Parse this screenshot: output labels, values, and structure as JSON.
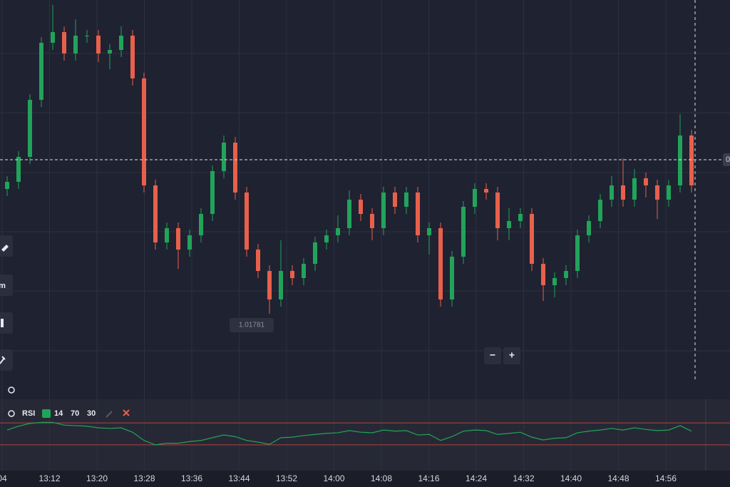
{
  "chart_data": {
    "type": "candlestick",
    "ylim": [
      1.01677,
      1.02237
    ],
    "up_color": "#22a35a",
    "down_color": "#e8604c",
    "price_marker": {
      "label": "1.01781",
      "value": 1.01781
    },
    "current_price": {
      "value": 1.02013,
      "label": "0"
    },
    "time_labels": [
      "04",
      "13:12",
      "13:20",
      "13:28",
      "13:36",
      "13:44",
      "13:52",
      "14:00",
      "14:08",
      "14:16",
      "14:24",
      "14:32",
      "14:40",
      "14:48",
      "14:56"
    ],
    "open": [
      1.01972,
      1.01982,
      1.02017,
      1.02097,
      1.02177,
      1.02192,
      1.02162,
      1.02187,
      1.02187,
      1.02162,
      1.02167,
      1.02187,
      1.02127,
      1.01977,
      1.01897,
      1.01917,
      1.01887,
      1.01907,
      1.01937,
      1.01997,
      1.02037,
      1.01967,
      1.01887,
      1.01857,
      1.01817,
      1.01857,
      1.01847,
      1.01867,
      1.01897,
      1.01907,
      1.01917,
      1.01957,
      1.01937,
      1.01917,
      1.01967,
      1.01947,
      1.01967,
      1.01907,
      1.01917,
      1.01817,
      1.01877,
      1.01947,
      1.01972,
      1.01967,
      1.01917,
      1.01927,
      1.01937,
      1.01867,
      1.01837,
      1.01847,
      1.01857,
      1.01907,
      1.01927,
      1.01957,
      1.01977,
      1.01957,
      1.01987,
      1.01977,
      1.01957,
      1.01977,
      1.02047
    ],
    "high": [
      1.0199,
      1.02025,
      1.02105,
      1.02185,
      1.0223,
      1.022,
      1.0221,
      1.02195,
      1.02195,
      1.02175,
      1.022,
      1.02195,
      1.02135,
      1.01985,
      1.01925,
      1.01925,
      1.01915,
      1.01945,
      1.02005,
      1.02047,
      1.02045,
      1.01975,
      1.01895,
      1.01865,
      1.019,
      1.01865,
      1.01875,
      1.01905,
      1.01915,
      1.01935,
      1.0197,
      1.01965,
      1.01945,
      1.01975,
      1.01975,
      1.01975,
      1.01975,
      1.01925,
      1.01925,
      1.01885,
      1.01955,
      1.0198,
      1.0198,
      1.01975,
      1.01945,
      1.01945,
      1.01945,
      1.01875,
      1.01855,
      1.01865,
      1.01915,
      1.01935,
      1.01965,
      1.0199,
      1.02015,
      1.02,
      1.01995,
      1.01985,
      1.01985,
      1.02077,
      1.02055
    ],
    "low": [
      1.01962,
      1.01972,
      1.02007,
      1.02087,
      1.02167,
      1.02152,
      1.02152,
      1.02177,
      1.0215,
      1.0214,
      1.02157,
      1.02117,
      1.01967,
      1.01887,
      1.01887,
      1.0186,
      1.01877,
      1.01897,
      1.01927,
      1.01987,
      1.01957,
      1.01877,
      1.01847,
      1.01797,
      1.01807,
      1.01837,
      1.01837,
      1.01857,
      1.01887,
      1.01897,
      1.01907,
      1.01927,
      1.019,
      1.01907,
      1.01937,
      1.01937,
      1.01897,
      1.0188,
      1.01807,
      1.01807,
      1.01867,
      1.01937,
      1.01957,
      1.019,
      1.019,
      1.01917,
      1.01857,
      1.01815,
      1.0182,
      1.01837,
      1.01847,
      1.01897,
      1.01917,
      1.01947,
      1.01947,
      1.01947,
      1.0196,
      1.0193,
      1.01947,
      1.01967,
      1.01967
    ],
    "close": [
      1.01982,
      1.02017,
      1.02097,
      1.02177,
      1.02192,
      1.02162,
      1.02187,
      1.02187,
      1.02162,
      1.02167,
      1.02187,
      1.02127,
      1.01977,
      1.01897,
      1.01917,
      1.01887,
      1.01907,
      1.01937,
      1.01997,
      1.02037,
      1.01967,
      1.01887,
      1.01857,
      1.01817,
      1.01857,
      1.01847,
      1.01867,
      1.01897,
      1.01907,
      1.01917,
      1.01957,
      1.01937,
      1.01917,
      1.01967,
      1.01947,
      1.01967,
      1.01907,
      1.01917,
      1.01817,
      1.01877,
      1.01947,
      1.01972,
      1.01967,
      1.01917,
      1.01927,
      1.01937,
      1.01867,
      1.01837,
      1.01847,
      1.01857,
      1.01907,
      1.01927,
      1.01957,
      1.01977,
      1.01957,
      1.01987,
      1.01977,
      1.01957,
      1.01977,
      1.02047,
      1.01977
    ],
    "rsi": {
      "label": "RSI",
      "period": 14,
      "upper": 70,
      "lower": 30,
      "ylim": [
        0,
        100
      ],
      "color": "#22a35a",
      "band_color": "#b8403a",
      "values": [
        57,
        64,
        69,
        71,
        71,
        66,
        65,
        64,
        61,
        60,
        61,
        53,
        38,
        30,
        33,
        33,
        36,
        38,
        43,
        48,
        45,
        38,
        35,
        31,
        43,
        44,
        47,
        49,
        51,
        52,
        56,
        53,
        52,
        57,
        55,
        56,
        48,
        49,
        38,
        45,
        55,
        57,
        56,
        49,
        51,
        53,
        44,
        39,
        42,
        43,
        52,
        55,
        57,
        60,
        57,
        61,
        58,
        56,
        57,
        65,
        55
      ]
    }
  },
  "ui": {
    "zoom_out": "−",
    "zoom_in": "+",
    "tool_label": "m"
  }
}
